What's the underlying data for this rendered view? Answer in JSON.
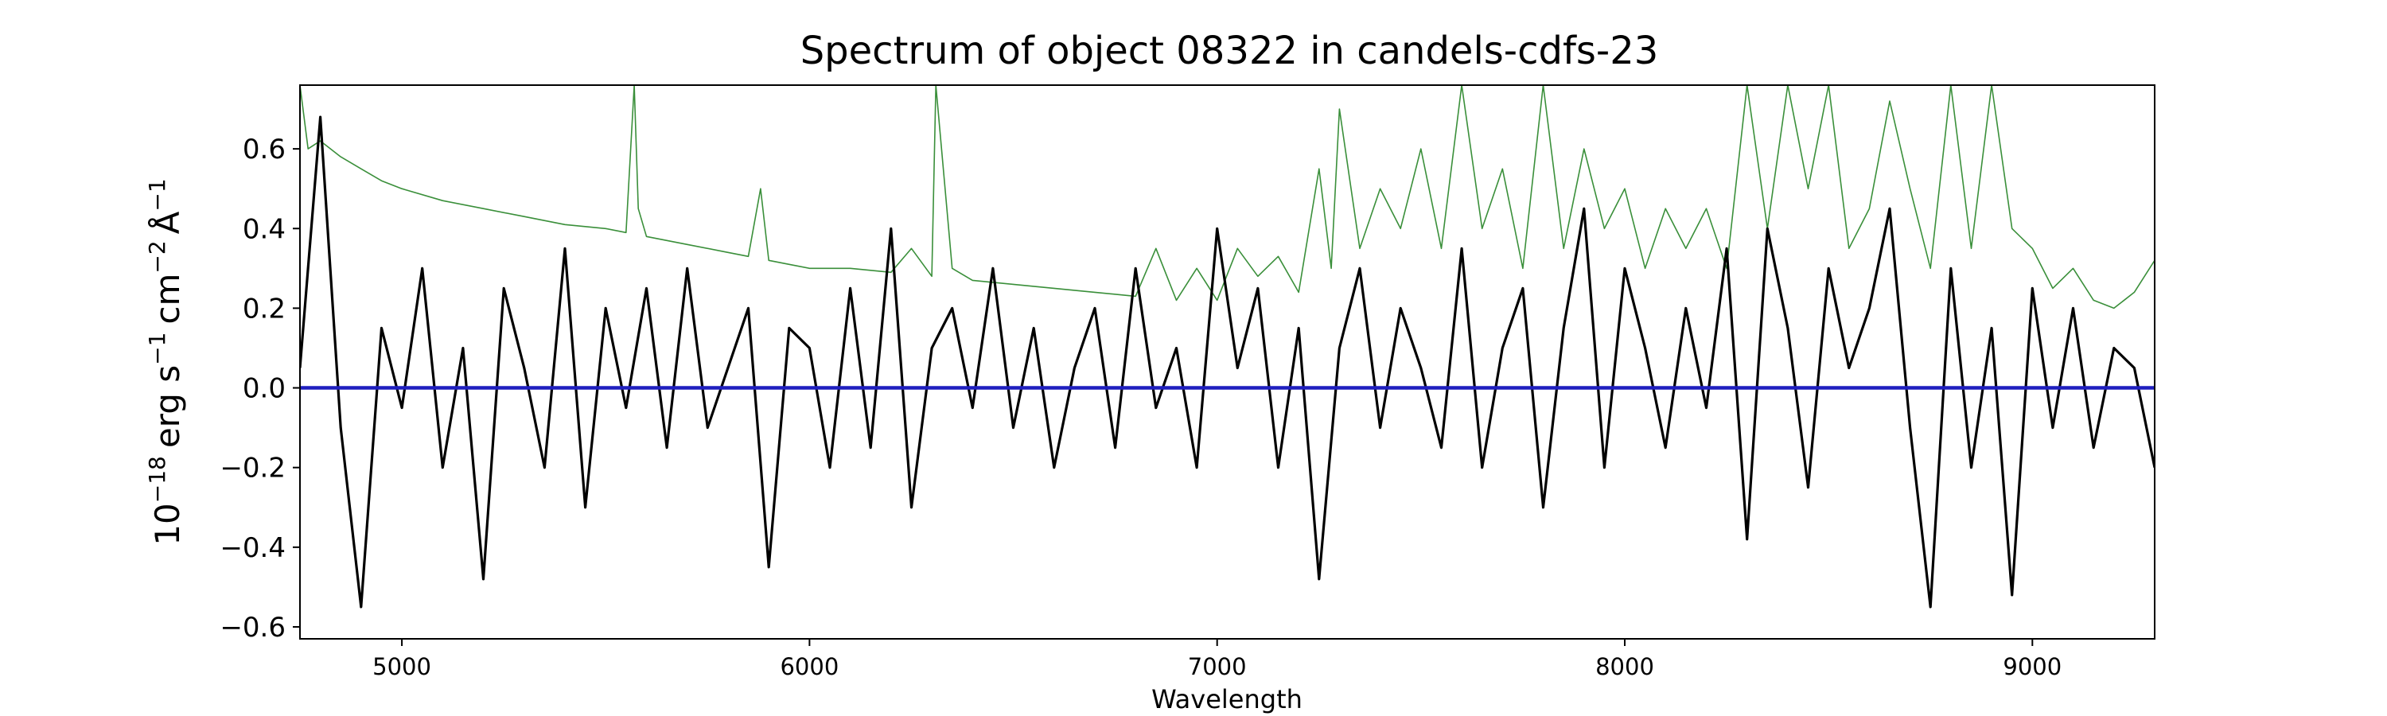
{
  "chart_data": {
    "type": "line",
    "title": "Spectrum of object 08322 in candels-cdfs-23",
    "xlabel": "Wavelength",
    "ylabel": {
      "base": "10",
      "exp": "−18",
      "unit_erg": "erg s",
      "unit_erg_exp": "−1",
      "unit_cm": "cm",
      "unit_cm_exp": "−2",
      "unit_ang": "Å",
      "unit_ang_exp": "−1"
    },
    "xlim": [
      4750,
      9300
    ],
    "ylim": [
      -0.63,
      0.76
    ],
    "xticks": [
      5000,
      6000,
      7000,
      8000,
      9000
    ],
    "xtick_labels": [
      "5000",
      "6000",
      "7000",
      "8000",
      "9000"
    ],
    "yticks": [
      -0.6,
      -0.4,
      -0.2,
      0.0,
      0.2,
      0.4,
      0.6
    ],
    "ytick_labels": [
      "−0.6",
      "−0.4",
      "−0.2",
      "0.0",
      "0.2",
      "0.4",
      "0.6"
    ],
    "grid": false,
    "legend": "none",
    "series": [
      {
        "role": "flux",
        "color": "#000000",
        "x": [
          4750,
          4800,
          4850,
          4900,
          4950,
          5000,
          5050,
          5100,
          5150,
          5200,
          5250,
          5300,
          5350,
          5400,
          5450,
          5500,
          5550,
          5600,
          5650,
          5700,
          5750,
          5800,
          5850,
          5900,
          5950,
          6000,
          6050,
          6100,
          6150,
          6200,
          6250,
          6300,
          6350,
          6400,
          6450,
          6500,
          6550,
          6600,
          6650,
          6700,
          6750,
          6800,
          6850,
          6900,
          6950,
          7000,
          7050,
          7100,
          7150,
          7200,
          7250,
          7300,
          7350,
          7400,
          7450,
          7500,
          7550,
          7600,
          7650,
          7700,
          7750,
          7800,
          7850,
          7900,
          7950,
          8000,
          8050,
          8100,
          8150,
          8200,
          8250,
          8300,
          8350,
          8400,
          8450,
          8500,
          8550,
          8600,
          8650,
          8700,
          8750,
          8800,
          8850,
          8900,
          8950,
          9000,
          9050,
          9100,
          9150,
          9200,
          9250,
          9300
        ],
        "y": [
          0.05,
          0.68,
          -0.1,
          -0.55,
          0.15,
          -0.05,
          0.3,
          -0.2,
          0.1,
          -0.48,
          0.25,
          0.05,
          -0.2,
          0.35,
          -0.3,
          0.2,
          -0.05,
          0.25,
          -0.15,
          0.3,
          -0.1,
          0.05,
          0.2,
          -0.45,
          0.15,
          0.1,
          -0.2,
          0.25,
          -0.15,
          0.4,
          -0.3,
          0.1,
          0.2,
          -0.05,
          0.3,
          -0.1,
          0.15,
          -0.2,
          0.05,
          0.2,
          -0.15,
          0.3,
          -0.05,
          0.1,
          -0.2,
          0.4,
          0.05,
          0.25,
          -0.2,
          0.15,
          -0.48,
          0.1,
          0.3,
          -0.1,
          0.2,
          0.05,
          -0.15,
          0.35,
          -0.2,
          0.1,
          0.25,
          -0.3,
          0.15,
          0.45,
          -0.2,
          0.3,
          0.1,
          -0.15,
          0.2,
          -0.05,
          0.35,
          -0.38,
          0.4,
          0.15,
          -0.25,
          0.3,
          0.05,
          0.2,
          0.45,
          -0.1,
          -0.55,
          0.3,
          -0.2,
          0.15,
          -0.52,
          0.25,
          -0.1,
          0.2,
          -0.15,
          0.1,
          0.05,
          -0.2
        ]
      },
      {
        "role": "error",
        "color": "#3a8f3a",
        "x": [
          4750,
          4770,
          4800,
          4850,
          4900,
          4950,
          5000,
          5100,
          5200,
          5300,
          5400,
          5500,
          5550,
          5570,
          5580,
          5600,
          5700,
          5800,
          5850,
          5880,
          5900,
          5950,
          6000,
          6100,
          6200,
          6250,
          6300,
          6310,
          6350,
          6400,
          6500,
          6600,
          6700,
          6800,
          6850,
          6900,
          6950,
          7000,
          7050,
          7100,
          7150,
          7200,
          7250,
          7280,
          7300,
          7350,
          7400,
          7450,
          7500,
          7550,
          7600,
          7650,
          7700,
          7750,
          7800,
          7850,
          7900,
          7950,
          8000,
          8050,
          8100,
          8150,
          8200,
          8250,
          8300,
          8350,
          8400,
          8450,
          8500,
          8550,
          8600,
          8650,
          8700,
          8750,
          8800,
          8850,
          8900,
          8950,
          9000,
          9050,
          9100,
          9150,
          9200,
          9250,
          9300
        ],
        "y": [
          0.76,
          0.6,
          0.62,
          0.58,
          0.55,
          0.52,
          0.5,
          0.47,
          0.45,
          0.43,
          0.41,
          0.4,
          0.39,
          0.76,
          0.45,
          0.38,
          0.36,
          0.34,
          0.33,
          0.5,
          0.32,
          0.31,
          0.3,
          0.3,
          0.29,
          0.35,
          0.28,
          0.76,
          0.3,
          0.27,
          0.26,
          0.25,
          0.24,
          0.23,
          0.35,
          0.22,
          0.3,
          0.22,
          0.35,
          0.28,
          0.33,
          0.24,
          0.55,
          0.3,
          0.7,
          0.35,
          0.5,
          0.4,
          0.6,
          0.35,
          0.76,
          0.4,
          0.55,
          0.3,
          0.76,
          0.35,
          0.6,
          0.4,
          0.5,
          0.3,
          0.45,
          0.35,
          0.45,
          0.3,
          0.76,
          0.4,
          0.76,
          0.5,
          0.76,
          0.35,
          0.45,
          0.72,
          0.5,
          0.3,
          0.76,
          0.35,
          0.76,
          0.4,
          0.35,
          0.25,
          0.3,
          0.22,
          0.2,
          0.24,
          0.32
        ]
      },
      {
        "role": "model",
        "color": "#1f1fbf",
        "x": [
          4750,
          9300
        ],
        "y": [
          0.0,
          0.0
        ]
      }
    ]
  }
}
